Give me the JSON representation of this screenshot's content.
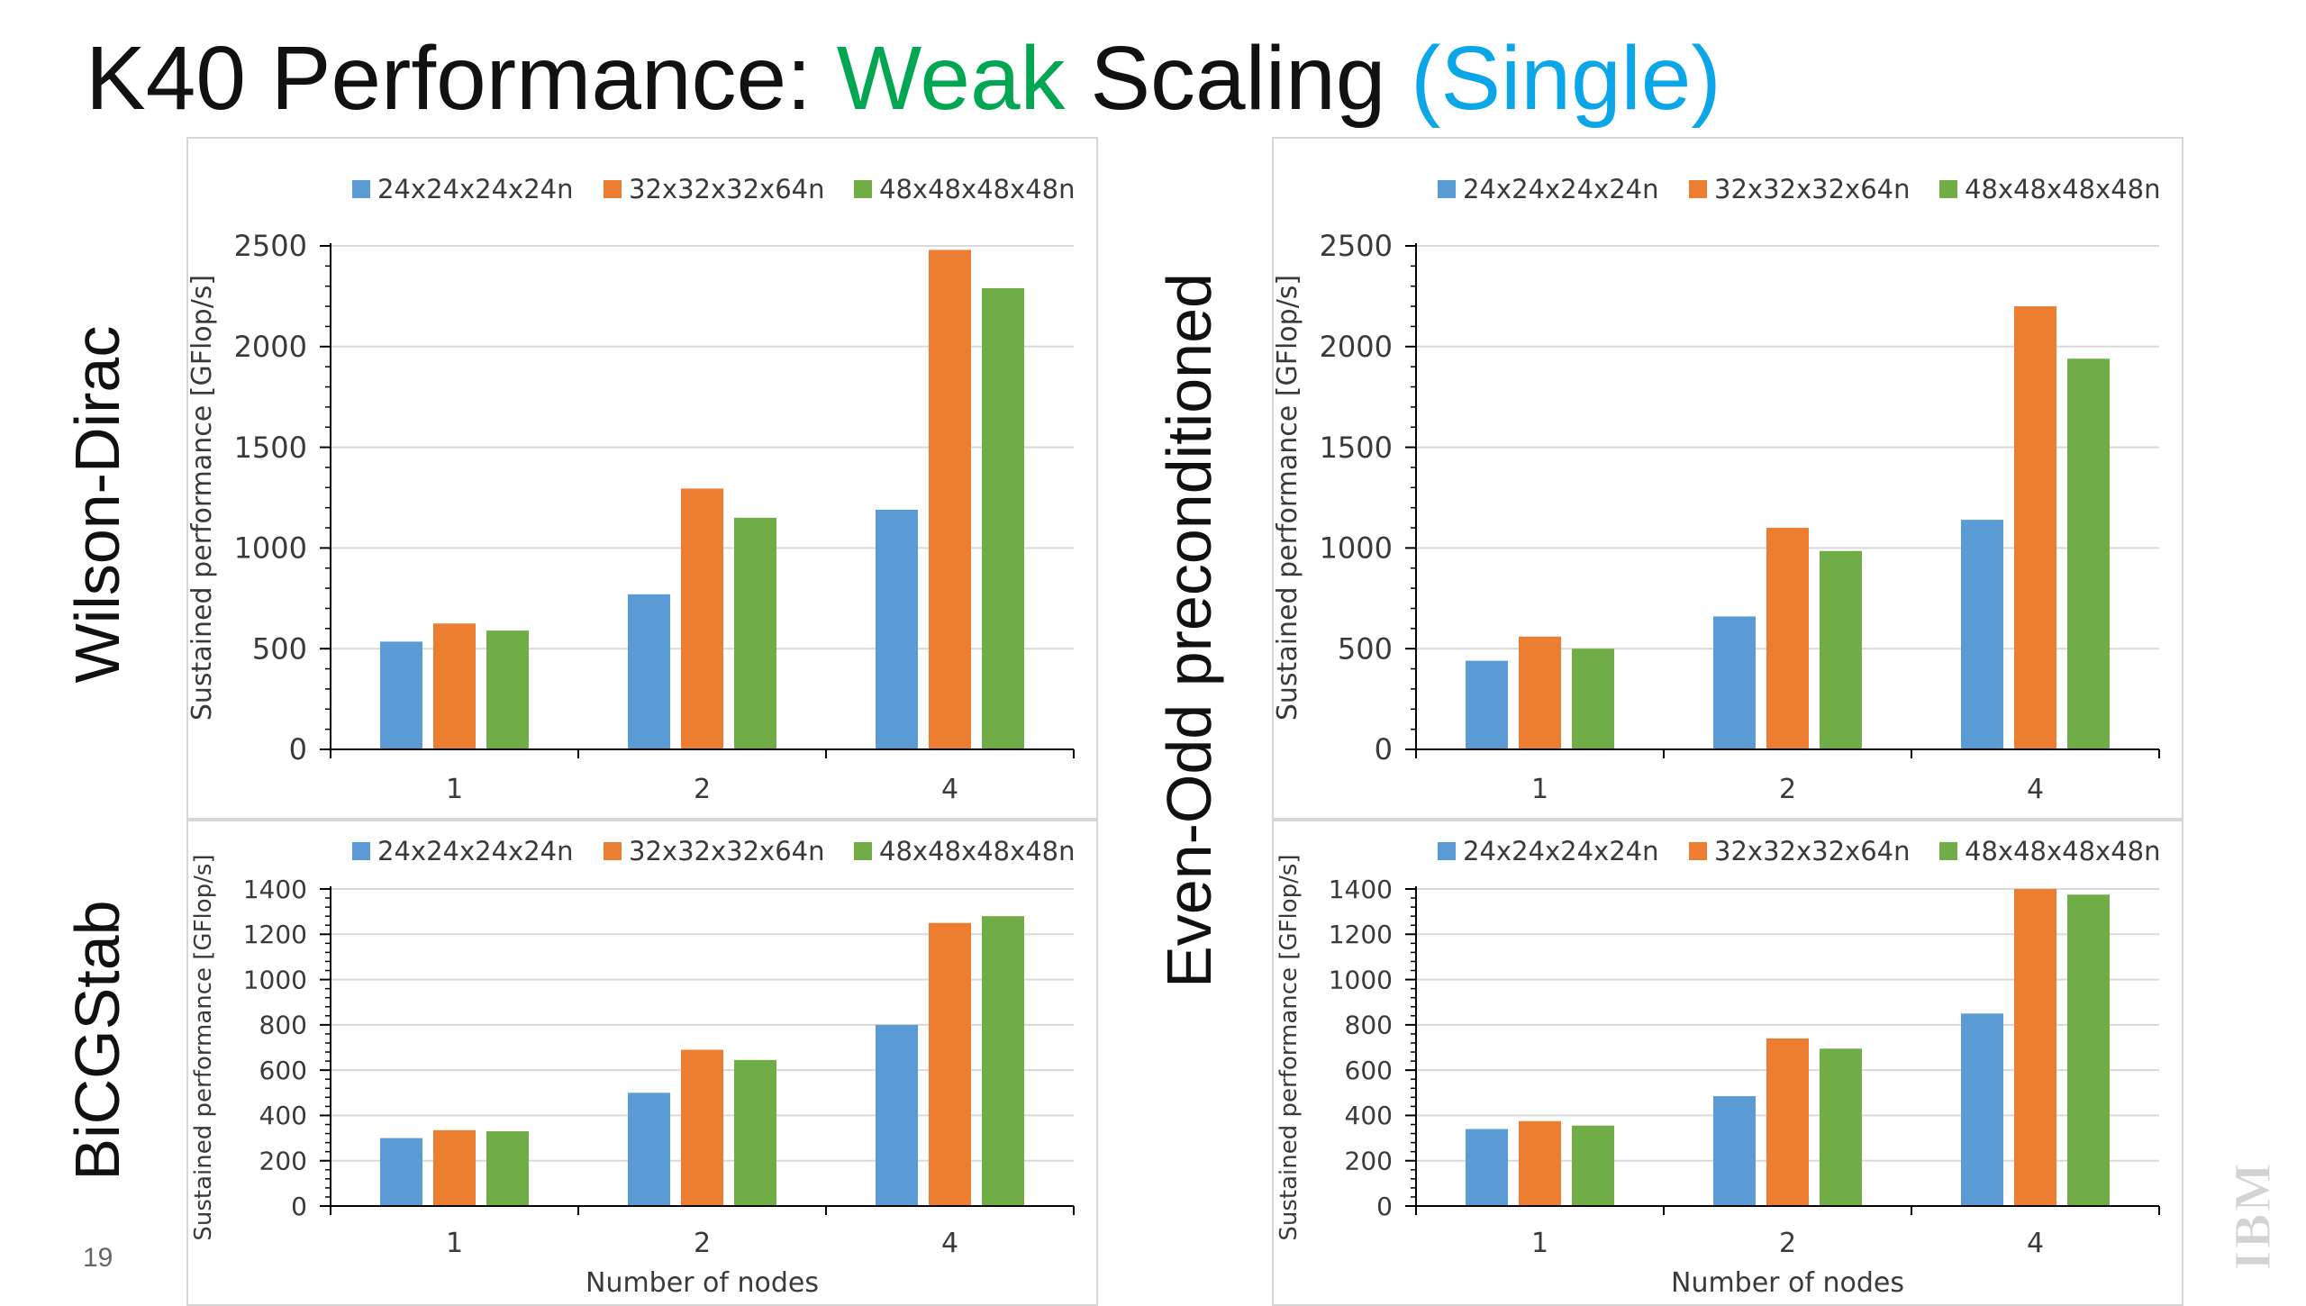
{
  "slide": {
    "title_parts": [
      "K40 Performance: ",
      "Weak",
      " Scaling ",
      "(Single)"
    ],
    "title_colors": [
      "#111111",
      "#00a651",
      "#111111",
      "#0aa6e8"
    ],
    "row_labels": [
      "Wilson-Dirac",
      "BiCGStab"
    ],
    "column_label": "Even-Odd preconditioned",
    "slide_number": "19",
    "logo_text": "IBM"
  },
  "chart_data": [
    {
      "type": "bar",
      "title": "",
      "categories": [
        "1",
        "2",
        "4"
      ],
      "series": [
        {
          "name": "24x24x24x24n",
          "color": "#5b9bd5",
          "values": [
            535,
            770,
            1190
          ]
        },
        {
          "name": "32x32x32x64n",
          "color": "#ed7d31",
          "values": [
            625,
            1295,
            2480
          ]
        },
        {
          "name": "48x48x48x48n",
          "color": "#70ad47",
          "values": [
            590,
            1150,
            2290
          ]
        }
      ],
      "ylabel": "Sustained performance [GFlop/s]",
      "xlabel": "",
      "ylim": [
        0,
        2500
      ],
      "yticks": [
        0,
        500,
        1000,
        1500,
        2000,
        2500
      ],
      "legend": "top",
      "grid": true
    },
    {
      "type": "bar",
      "title": "",
      "categories": [
        "1",
        "2",
        "4"
      ],
      "series": [
        {
          "name": "24x24x24x24n",
          "color": "#5b9bd5",
          "values": [
            440,
            660,
            1140
          ]
        },
        {
          "name": "32x32x32x64n",
          "color": "#ed7d31",
          "values": [
            560,
            1100,
            2200
          ]
        },
        {
          "name": "48x48x48x48n",
          "color": "#70ad47",
          "values": [
            500,
            985,
            1940
          ]
        }
      ],
      "ylabel": "Sustained performance [GFlop/s]",
      "xlabel": "",
      "ylim": [
        0,
        2500
      ],
      "yticks": [
        0,
        500,
        1000,
        1500,
        2000,
        2500
      ],
      "legend": "top",
      "grid": true
    },
    {
      "type": "bar",
      "title": "",
      "categories": [
        "1",
        "2",
        "4"
      ],
      "series": [
        {
          "name": "24x24x24x24n",
          "color": "#5b9bd5",
          "values": [
            300,
            500,
            800
          ]
        },
        {
          "name": "32x32x32x64n",
          "color": "#ed7d31",
          "values": [
            335,
            690,
            1250
          ]
        },
        {
          "name": "48x48x48x48n",
          "color": "#70ad47",
          "values": [
            330,
            645,
            1280
          ]
        }
      ],
      "ylabel": "Sustained performance [GFlop/s]",
      "xlabel": "Number of nodes",
      "ylim": [
        0,
        1400
      ],
      "yticks": [
        0,
        200,
        400,
        600,
        800,
        1000,
        1200,
        1400
      ],
      "legend": "top",
      "grid": true
    },
    {
      "type": "bar",
      "title": "",
      "categories": [
        "1",
        "2",
        "4"
      ],
      "series": [
        {
          "name": "24x24x24x24n",
          "color": "#5b9bd5",
          "values": [
            340,
            485,
            850
          ]
        },
        {
          "name": "32x32x32x64n",
          "color": "#ed7d31",
          "values": [
            375,
            740,
            1400
          ]
        },
        {
          "name": "48x48x48x48n",
          "color": "#70ad47",
          "values": [
            355,
            695,
            1375
          ]
        }
      ],
      "ylabel": "Sustained performance [GFlop/s]",
      "xlabel": "Number of nodes",
      "ylim": [
        0,
        1400
      ],
      "yticks": [
        0,
        200,
        400,
        600,
        800,
        1000,
        1200,
        1400
      ],
      "legend": "top",
      "grid": true
    }
  ]
}
